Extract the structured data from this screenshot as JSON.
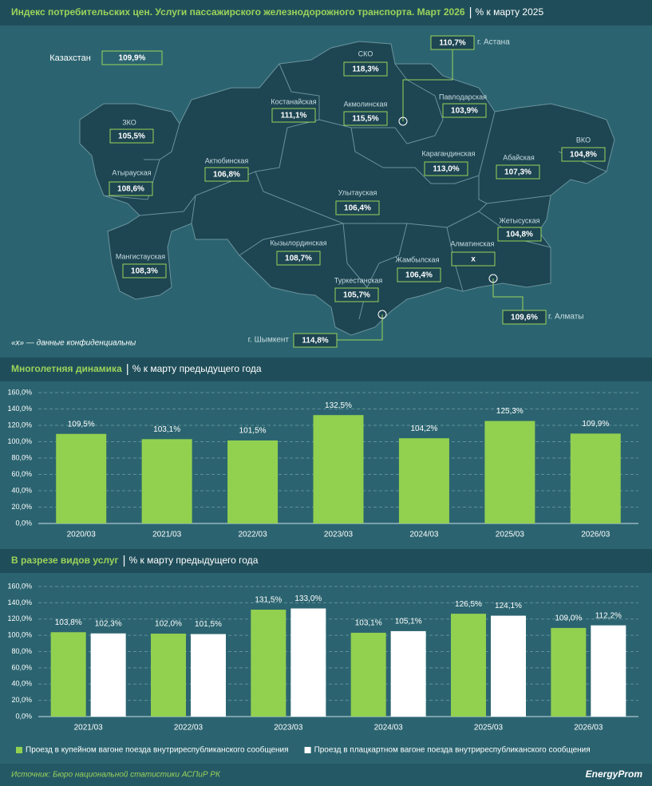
{
  "header": {
    "title": "Индекс потребительских цен. Услуги пассажирского железнодорожного транспорта. Март 2026",
    "subtitle": "% к марту 2025"
  },
  "map": {
    "note": "«х» — данные конфиденциальны",
    "regions": [
      {
        "name": "Казахстан",
        "value": "109,9%"
      },
      {
        "name": "СКО",
        "value": "118,3%"
      },
      {
        "name": "г. Астана",
        "value": "110,7%"
      },
      {
        "name": "Костанайская",
        "value": "111,1%"
      },
      {
        "name": "Акмолинская",
        "value": "115,5%"
      },
      {
        "name": "Павлодарская",
        "value": "103,9%"
      },
      {
        "name": "ЗКО",
        "value": "105,5%"
      },
      {
        "name": "Актюбинская",
        "value": "106,8%"
      },
      {
        "name": "Карагандинская",
        "value": "113,0%"
      },
      {
        "name": "Абайская",
        "value": "107,3%"
      },
      {
        "name": "ВКО",
        "value": "104,8%"
      },
      {
        "name": "Атырауская",
        "value": "108,6%"
      },
      {
        "name": "Улытауская",
        "value": "106,4%"
      },
      {
        "name": "Жетысуская",
        "value": "104,8%"
      },
      {
        "name": "Кызылординская",
        "value": "108,7%"
      },
      {
        "name": "Алматинская",
        "value": "x"
      },
      {
        "name": "Мангистауская",
        "value": "108,3%"
      },
      {
        "name": "Жамбылская",
        "value": "106,4%"
      },
      {
        "name": "Туркестанская",
        "value": "105,7%"
      },
      {
        "name": "г. Алматы",
        "value": "109,6%"
      },
      {
        "name": "г. Шымкент",
        "value": "114,8%"
      }
    ]
  },
  "chart_data": [
    {
      "type": "bar",
      "title": "Многолетняя динамика",
      "subtitle": "% к марту предыдущего года",
      "categories": [
        "2020/03",
        "2021/03",
        "2022/03",
        "2023/03",
        "2024/03",
        "2025/03",
        "2026/03"
      ],
      "values": [
        109.5,
        103.1,
        101.5,
        132.5,
        104.2,
        125.3,
        109.9
      ],
      "value_labels": [
        "109,5%",
        "103,1%",
        "101,5%",
        "132,5%",
        "104,2%",
        "125,3%",
        "109,9%"
      ],
      "color": "#92d050",
      "ylim": [
        0,
        160
      ],
      "yticks": [
        {
          "value": 0,
          "label": "0,0%"
        },
        {
          "value": 20,
          "label": "20,0%"
        },
        {
          "value": 40,
          "label": "40,0%"
        },
        {
          "value": 60,
          "label": "60,0%"
        },
        {
          "value": 80,
          "label": "80,0%"
        },
        {
          "value": 100,
          "label": "100,0%"
        },
        {
          "value": 120,
          "label": "120,0%"
        },
        {
          "value": 140,
          "label": "140,0%"
        },
        {
          "value": 160,
          "label": "160,0%"
        }
      ],
      "grid": true
    },
    {
      "type": "grouped_bar",
      "title": "В разрезе видов услуг",
      "subtitle": "% к марту предыдущего года",
      "categories": [
        "2021/03",
        "2022/03",
        "2023/03",
        "2024/03",
        "2025/03",
        "2026/03"
      ],
      "series": [
        {
          "name": "Проезд в купейном вагоне поезда внутриреспубликанского сообщения",
          "color": "#92d050",
          "values": [
            103.8,
            102.0,
            131.5,
            103.1,
            126.5,
            109.0
          ],
          "value_labels": [
            "103,8%",
            "102,0%",
            "131,5%",
            "103,1%",
            "126,5%",
            "109,0%"
          ]
        },
        {
          "name": "Проезд в плацкартном вагоне поезда внутриреспубликанского сообщения",
          "color": "#ffffff",
          "values": [
            102.3,
            101.5,
            133.0,
            105.1,
            124.1,
            112.2
          ],
          "value_labels": [
            "102,3%",
            "101,5%",
            "133,0%",
            "105,1%",
            "124,1%",
            "112,2%"
          ]
        }
      ],
      "ylim": [
        0,
        160
      ],
      "yticks": [
        {
          "value": 0,
          "label": "0,0%"
        },
        {
          "value": 20,
          "label": "20,0%"
        },
        {
          "value": 40,
          "label": "40,0%"
        },
        {
          "value": 60,
          "label": "60,0%"
        },
        {
          "value": 80,
          "label": "80,0%"
        },
        {
          "value": 100,
          "label": "100,0%"
        },
        {
          "value": 120,
          "label": "120,0%"
        },
        {
          "value": 140,
          "label": "140,0%"
        },
        {
          "value": 160,
          "label": "160,0%"
        }
      ],
      "grid": true,
      "legend": "bottom"
    }
  ],
  "footer": {
    "source": "Источник: Бюро национальной статистики АСПиР РК",
    "logo": "EnergyProm"
  }
}
